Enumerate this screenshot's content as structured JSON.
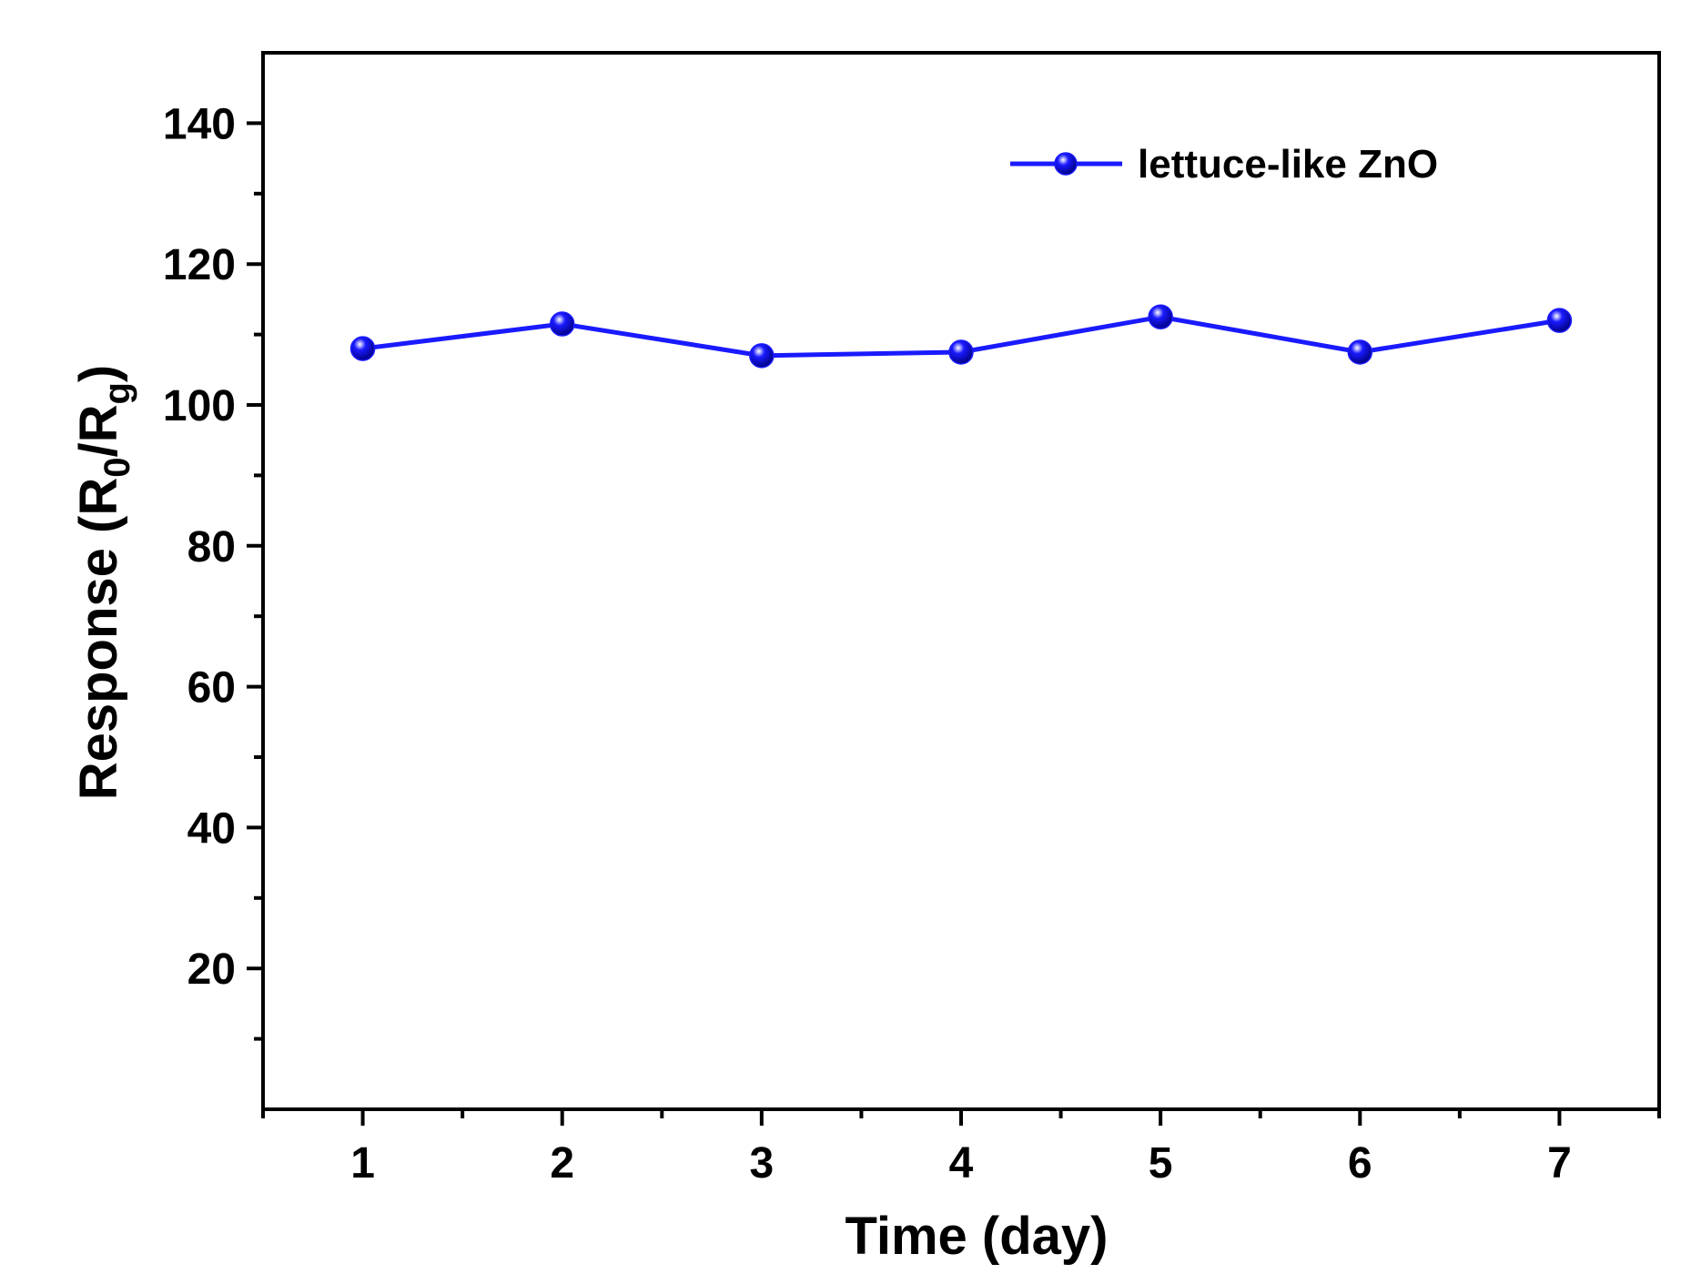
{
  "chart_data": {
    "type": "line",
    "title": "",
    "xlabel": "Time (day)",
    "ylabel": {
      "prefix": "Response (R",
      "sub1": "0",
      "middle": "/R",
      "sub2": "g",
      "suffix": ")"
    },
    "x": [
      1,
      2,
      3,
      4,
      5,
      6,
      7
    ],
    "xlim": [
      0.5,
      7.5
    ],
    "ylim": [
      0,
      150
    ],
    "xticks": [
      1,
      2,
      3,
      4,
      5,
      6,
      7
    ],
    "yticks": [
      20,
      40,
      60,
      80,
      100,
      120,
      140
    ],
    "grid": false,
    "legend_position": "top-right",
    "series": [
      {
        "name": "lettuce-like ZnO",
        "color": "#1a1aff",
        "marker": "circle",
        "values": [
          108,
          111.5,
          107,
          107.5,
          112.5,
          107.5,
          112
        ]
      }
    ]
  }
}
